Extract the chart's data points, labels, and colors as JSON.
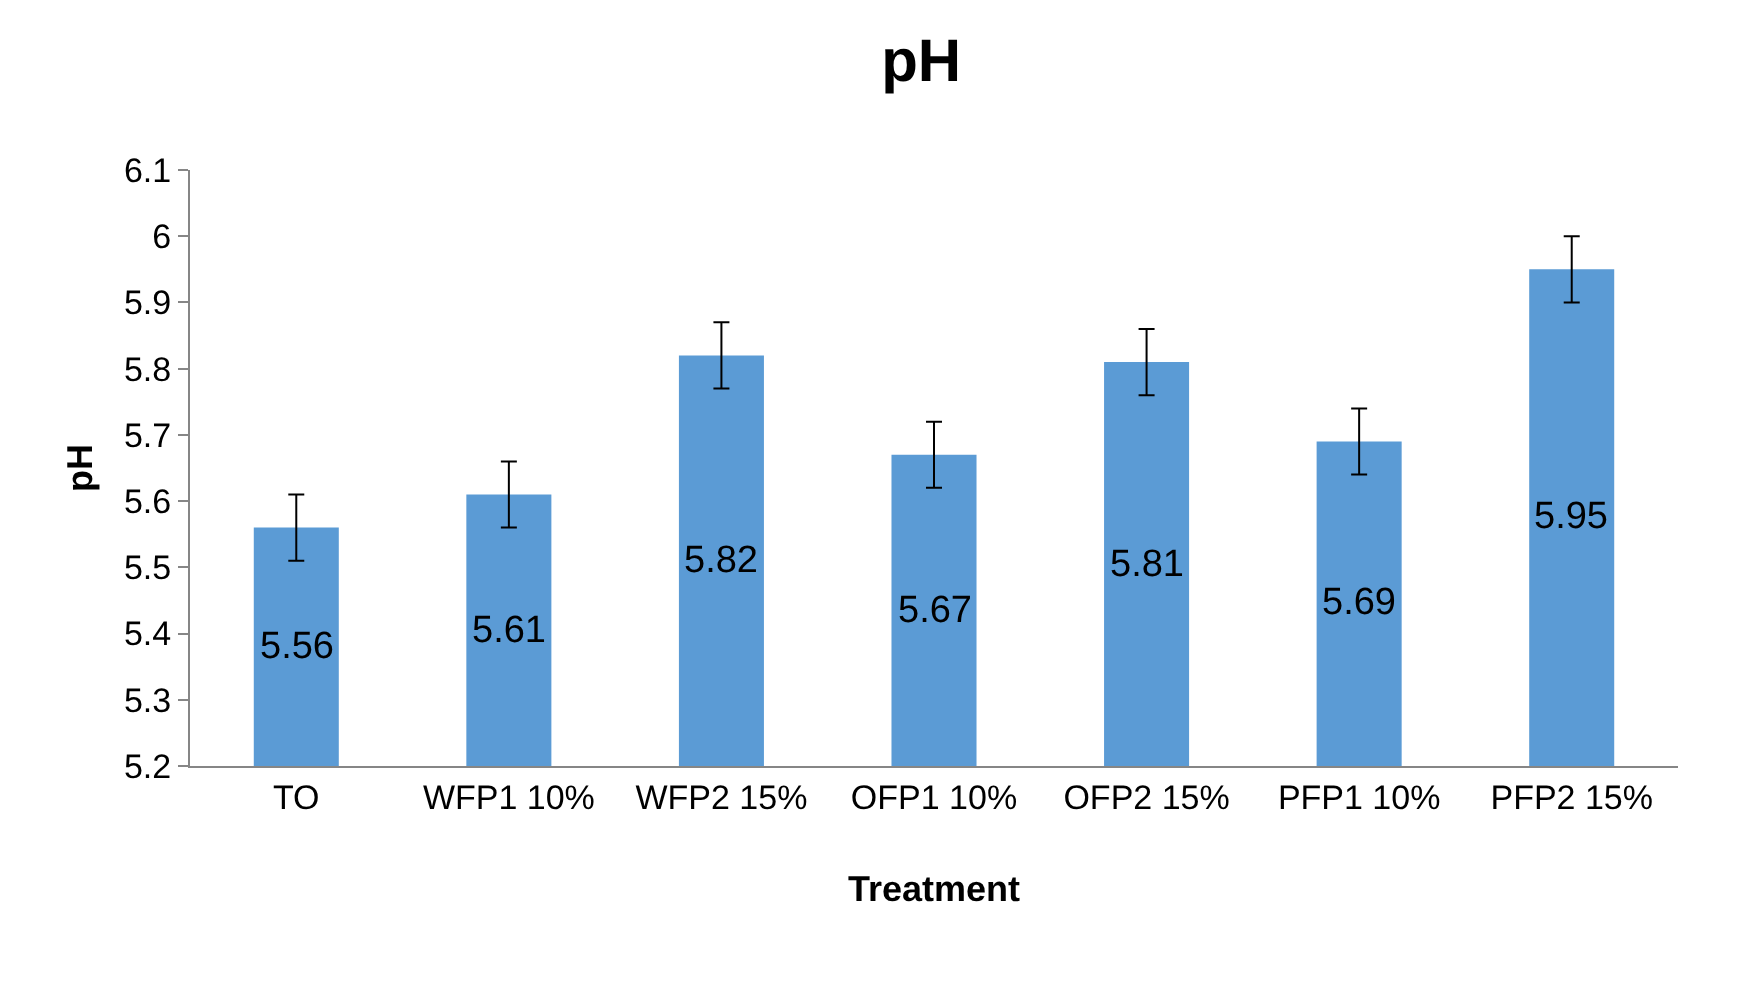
{
  "chart_data": {
    "type": "bar",
    "title": "pH",
    "xlabel": "Treatment",
    "ylabel": "pH",
    "categories": [
      "TO",
      "WFP1 10%",
      "WFP2 15%",
      "OFP1 10%",
      "OFP2 15%",
      "PFP1 10%",
      "PFP2 15%"
    ],
    "values": [
      5.56,
      5.61,
      5.82,
      5.67,
      5.81,
      5.69,
      5.95
    ],
    "errors": [
      0.05,
      0.05,
      0.05,
      0.05,
      0.05,
      0.05,
      0.05
    ],
    "color": "#5b9bd5",
    "ylim": [
      5.2,
      6.1
    ],
    "yticks": [
      5.2,
      5.3,
      5.4,
      5.5,
      5.6,
      5.7,
      5.8,
      5.9,
      6,
      6.1
    ],
    "grid": false,
    "data_labels": true
  }
}
